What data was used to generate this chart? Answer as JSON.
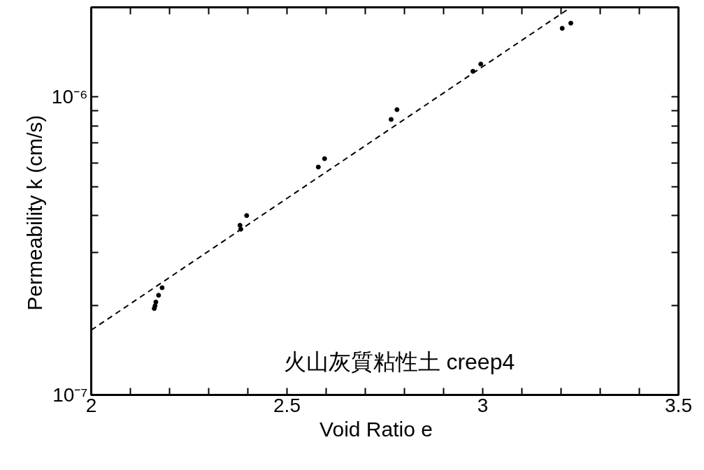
{
  "chart_data": {
    "type": "scatter",
    "xlabel": "Void Ratio    e",
    "ylabel": "Permeability    k  (cm/s)",
    "log": "y",
    "grid": false,
    "marker": "circle",
    "xlim": [
      2,
      3.5
    ],
    "ylim": [
      1e-07,
      2e-06
    ],
    "xticks": [
      2,
      {
        "value": 2.1,
        "label": null
      },
      {
        "value": 2.2,
        "label": null
      },
      {
        "value": 2.3,
        "label": null
      },
      {
        "value": 2.4,
        "label": null
      },
      2.5,
      {
        "value": 2.6,
        "label": null
      },
      {
        "value": 2.7,
        "label": null
      },
      {
        "value": 2.8,
        "label": null
      },
      {
        "value": 2.9,
        "label": null
      },
      3,
      {
        "value": 3.1,
        "label": null
      },
      {
        "value": 3.2,
        "label": null
      },
      {
        "value": 3.3,
        "label": null
      },
      {
        "value": 3.4,
        "label": null
      },
      3.5
    ],
    "yticks": [
      {
        "value": 1e-07,
        "label": "10⁻⁷"
      },
      {
        "value": 2e-07,
        "label": null
      },
      {
        "value": 3e-07,
        "label": null
      },
      {
        "value": 4e-07,
        "label": null
      },
      {
        "value": 5e-07,
        "label": null
      },
      {
        "value": 6e-07,
        "label": null
      },
      {
        "value": 7e-07,
        "label": null
      },
      {
        "value": 8e-07,
        "label": null
      },
      {
        "value": 9e-07,
        "label": null
      },
      {
        "value": 1e-06,
        "label": "10⁻⁶"
      }
    ],
    "annotations": [
      "火山灰質粘性土  creep4"
    ],
    "series": [
      {
        "color": "#000000",
        "x": [
          2.181,
          2.172,
          2.165,
          2.163,
          2.161,
          2.397,
          2.38,
          2.382,
          2.58,
          2.596,
          2.766,
          2.781,
          2.975,
          2.995,
          3.203,
          3.225
        ],
        "values": [
          2.29e-07,
          2.16e-07,
          2.05e-07,
          1.99e-07,
          1.95e-07,
          4e-07,
          3.71e-07,
          3.6e-07,
          5.82e-07,
          6.21e-07,
          8.41e-07,
          9.07e-07,
          1.22e-06,
          1.29e-06,
          1.7e-06,
          1.77e-06
        ]
      },
      {
        "type": "line",
        "marker": "none",
        "color": "#000000",
        "line_style": "dashed",
        "x": [
          2,
          3.225
        ],
        "values": [
          1.65e-07,
          2e-06
        ]
      }
    ]
  }
}
